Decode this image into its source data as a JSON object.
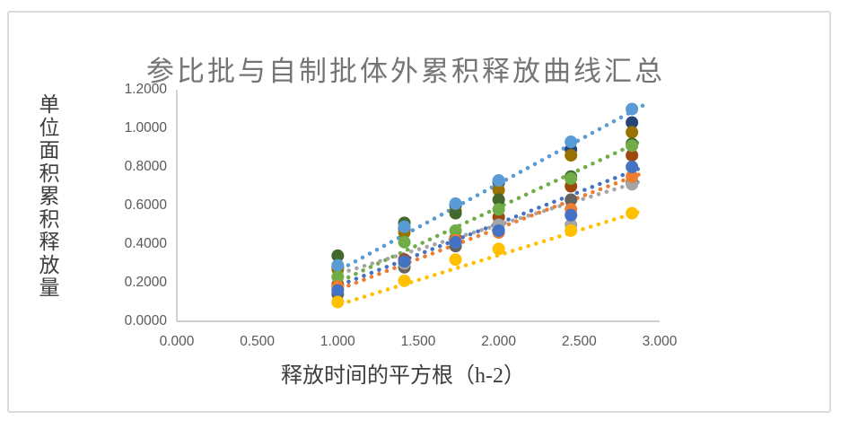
{
  "chart_data": {
    "type": "scatter",
    "title": "参比批与自制批体外累积释放曲线汇总",
    "xlabel": "释放时间的平方根（h-2）",
    "ylabel": "单位面积累积释放量",
    "xlim": [
      0,
      3.0
    ],
    "ylim": [
      0,
      1.2
    ],
    "grid": false,
    "legend_position": "none",
    "x_ticks": [
      "0.000",
      "0.500",
      "1.000",
      "1.500",
      "2.000",
      "2.500",
      "3.000"
    ],
    "y_ticks": [
      "0.0000",
      "0.2000",
      "0.4000",
      "0.6000",
      "0.8000",
      "1.0000",
      "1.2000"
    ],
    "x": [
      1.0,
      1.414,
      1.732,
      2.0,
      2.449,
      2.828
    ],
    "series": [
      {
        "name": "dark-navy",
        "color": "#264478",
        "values": [
          0.28,
          0.48,
          0.6,
          0.72,
          0.89,
          1.03
        ],
        "trendline": null
      },
      {
        "name": "dark-yellow",
        "color": "#997300",
        "values": [
          0.27,
          0.46,
          0.57,
          0.68,
          0.86,
          0.98
        ],
        "trendline": null
      },
      {
        "name": "dark-green",
        "color": "#43682B",
        "values": [
          0.34,
          0.51,
          0.56,
          0.63,
          0.75,
          0.92
        ],
        "trendline": null
      },
      {
        "name": "dark-red",
        "color": "#9E480E",
        "values": [
          0.19,
          0.32,
          0.43,
          0.54,
          0.7,
          0.86
        ],
        "trendline": null
      },
      {
        "name": "dark-gray",
        "color": "#636363",
        "values": [
          0.14,
          0.28,
          0.39,
          0.5,
          0.63,
          0.72
        ],
        "trendline": null
      },
      {
        "name": "light-blue",
        "color": "#5B9BD5",
        "values": [
          0.29,
          0.49,
          0.61,
          0.73,
          0.93,
          1.1
        ],
        "trendline": {
          "x": [
            1.02,
            2.9
          ],
          "y": [
            0.27,
            1.12
          ]
        }
      },
      {
        "name": "green",
        "color": "#70AD47",
        "values": [
          0.23,
          0.41,
          0.47,
          0.58,
          0.74,
          0.91
        ],
        "trendline": {
          "x": [
            1.02,
            2.9
          ],
          "y": [
            0.21,
            0.94
          ]
        }
      },
      {
        "name": "gray",
        "color": "#A5A5A5",
        "values": [
          0.17,
          0.3,
          0.41,
          0.5,
          0.5,
          0.71
        ],
        "trendline": {
          "x": [
            1.02,
            2.9
          ],
          "y": [
            0.25,
            0.73
          ]
        }
      },
      {
        "name": "orange",
        "color": "#ED7D31",
        "values": [
          0.18,
          0.31,
          0.42,
          0.46,
          0.58,
          0.75
        ],
        "trendline": {
          "x": [
            1.02,
            2.9
          ],
          "y": [
            0.17,
            0.77
          ]
        }
      },
      {
        "name": "medium-blue",
        "color": "#4472C4",
        "values": [
          0.16,
          0.31,
          0.41,
          0.47,
          0.55,
          0.8
        ],
        "trendline": {
          "x": [
            1.02,
            2.9
          ],
          "y": [
            0.19,
            0.8
          ]
        }
      },
      {
        "name": "yellow",
        "color": "#FFC000",
        "values": [
          0.1,
          0.21,
          0.32,
          0.375,
          0.47,
          0.56
        ],
        "trendline": {
          "x": [
            1.02,
            2.9
          ],
          "y": [
            0.09,
            0.575
          ]
        }
      }
    ]
  },
  "style": {
    "axis_line_color": "#BFBFBF",
    "frame_border_color": "#DBDBDB",
    "title_color": "#757575",
    "tick_color": "#595959",
    "axis_title_color": "#3D3D3D",
    "background": "#FFFFFF"
  }
}
